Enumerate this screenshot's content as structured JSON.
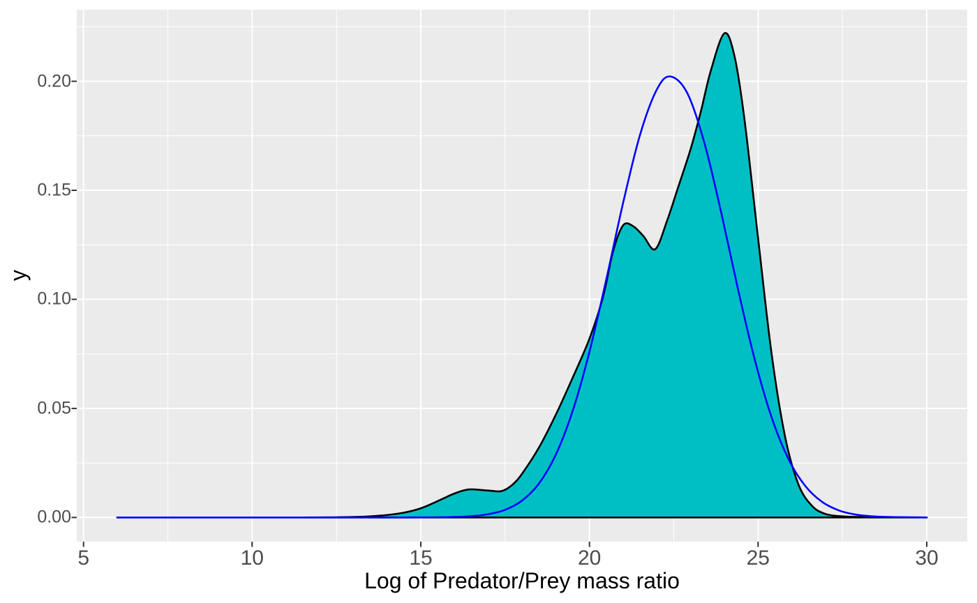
{
  "figure": {
    "background": "#FFFFFF",
    "panel_background": "#EBEBEB",
    "grid_color": "#FFFFFF",
    "tick_mark_color": "#333333",
    "tick_label_color": "#4D4D4D",
    "axis_title_color": "#000000"
  },
  "chart_data": {
    "type": "area",
    "title": "",
    "xlabel": "Log of Predator/Prey mass ratio",
    "ylabel": "y",
    "legend": "none",
    "grid": "major-and-minor",
    "x_domain": [
      4.8,
      31.2
    ],
    "y_domain": [
      -0.0111,
      0.2328
    ],
    "x_ticks": [
      5,
      10,
      15,
      20,
      25,
      30
    ],
    "x_tick_labels": [
      "5",
      "10",
      "15",
      "20",
      "25",
      "30"
    ],
    "x_minor_ticks": [
      7.5,
      12.5,
      17.5,
      22.5,
      27.5
    ],
    "y_ticks": [
      0,
      0.05,
      0.1,
      0.15,
      0.2
    ],
    "y_tick_labels": [
      "0.00",
      "0.05",
      "0.10",
      "0.15",
      "0.20"
    ],
    "y_minor_ticks": [
      0.025,
      0.075,
      0.125,
      0.175,
      0.225
    ],
    "series": [
      {
        "name": "kernel-density",
        "type": "area",
        "fill": "#00BFC4",
        "stroke": "#000000",
        "stroke_width": 2.6,
        "points": [
          [
            6,
            0
          ],
          [
            10,
            0
          ],
          [
            11.5,
            0
          ],
          [
            12.5,
            0.0001
          ],
          [
            13,
            0.0002
          ],
          [
            13.5,
            0.0005
          ],
          [
            14,
            0.0011
          ],
          [
            14.5,
            0.0022
          ],
          [
            15,
            0.0042
          ],
          [
            15.5,
            0.0075
          ],
          [
            16,
            0.011
          ],
          [
            16.4,
            0.0128
          ],
          [
            16.8,
            0.0126
          ],
          [
            17.1,
            0.0122
          ],
          [
            17.4,
            0.0121
          ],
          [
            17.7,
            0.0148
          ],
          [
            18,
            0.02
          ],
          [
            18.5,
            0.032
          ],
          [
            19,
            0.047
          ],
          [
            19.5,
            0.064
          ],
          [
            20,
            0.082
          ],
          [
            20.4,
            0.101
          ],
          [
            20.7,
            0.122
          ],
          [
            21,
            0.134
          ],
          [
            21.3,
            0.1335
          ],
          [
            21.6,
            0.129
          ],
          [
            21.95,
            0.123
          ],
          [
            22.3,
            0.136
          ],
          [
            22.6,
            0.15
          ],
          [
            23,
            0.169
          ],
          [
            23.3,
            0.186
          ],
          [
            23.6,
            0.205
          ],
          [
            24,
            0.222
          ],
          [
            24.3,
            0.2115
          ],
          [
            24.6,
            0.182
          ],
          [
            25,
            0.128
          ],
          [
            25.4,
            0.075
          ],
          [
            25.8,
            0.037
          ],
          [
            26.2,
            0.015
          ],
          [
            26.6,
            0.0053
          ],
          [
            27,
            0.0016
          ],
          [
            27.5,
            0.0005
          ],
          [
            28,
            0.0002
          ],
          [
            28.5,
            0.0001
          ],
          [
            29,
            0
          ],
          [
            30,
            0
          ]
        ]
      },
      {
        "name": "normal-curve",
        "type": "line",
        "stroke": "#0000FF",
        "stroke_width": 2.6,
        "mean": 22.4,
        "sd": 1.73,
        "peak": 0.202,
        "points": [
          [
            6,
            0
          ],
          [
            10,
            0
          ],
          [
            13,
            0
          ],
          [
            14.5,
            0
          ],
          [
            15.5,
            0.0001
          ],
          [
            16,
            0.0002
          ],
          [
            16.5,
            0.0006
          ],
          [
            17,
            0.0015
          ],
          [
            17.5,
            0.0035
          ],
          [
            18,
            0.0077
          ],
          [
            18.5,
            0.0155
          ],
          [
            19,
            0.0287
          ],
          [
            19.5,
            0.0487
          ],
          [
            20,
            0.076
          ],
          [
            20.5,
            0.1092
          ],
          [
            21,
            0.1444
          ],
          [
            21.5,
            0.1755
          ],
          [
            22,
            0.1963
          ],
          [
            22.4,
            0.2022
          ],
          [
            22.9,
            0.1946
          ],
          [
            23.4,
            0.1722
          ],
          [
            23.9,
            0.1402
          ],
          [
            24.4,
            0.105
          ],
          [
            24.9,
            0.0724
          ],
          [
            25.4,
            0.0459
          ],
          [
            25.9,
            0.0268
          ],
          [
            26.4,
            0.0144
          ],
          [
            26.9,
            0.0071
          ],
          [
            27.4,
            0.0032
          ],
          [
            27.9,
            0.0013
          ],
          [
            28.4,
            0.0005
          ],
          [
            28.9,
            0.0002
          ],
          [
            29.5,
            0.0001
          ],
          [
            30,
            0
          ]
        ]
      }
    ]
  }
}
